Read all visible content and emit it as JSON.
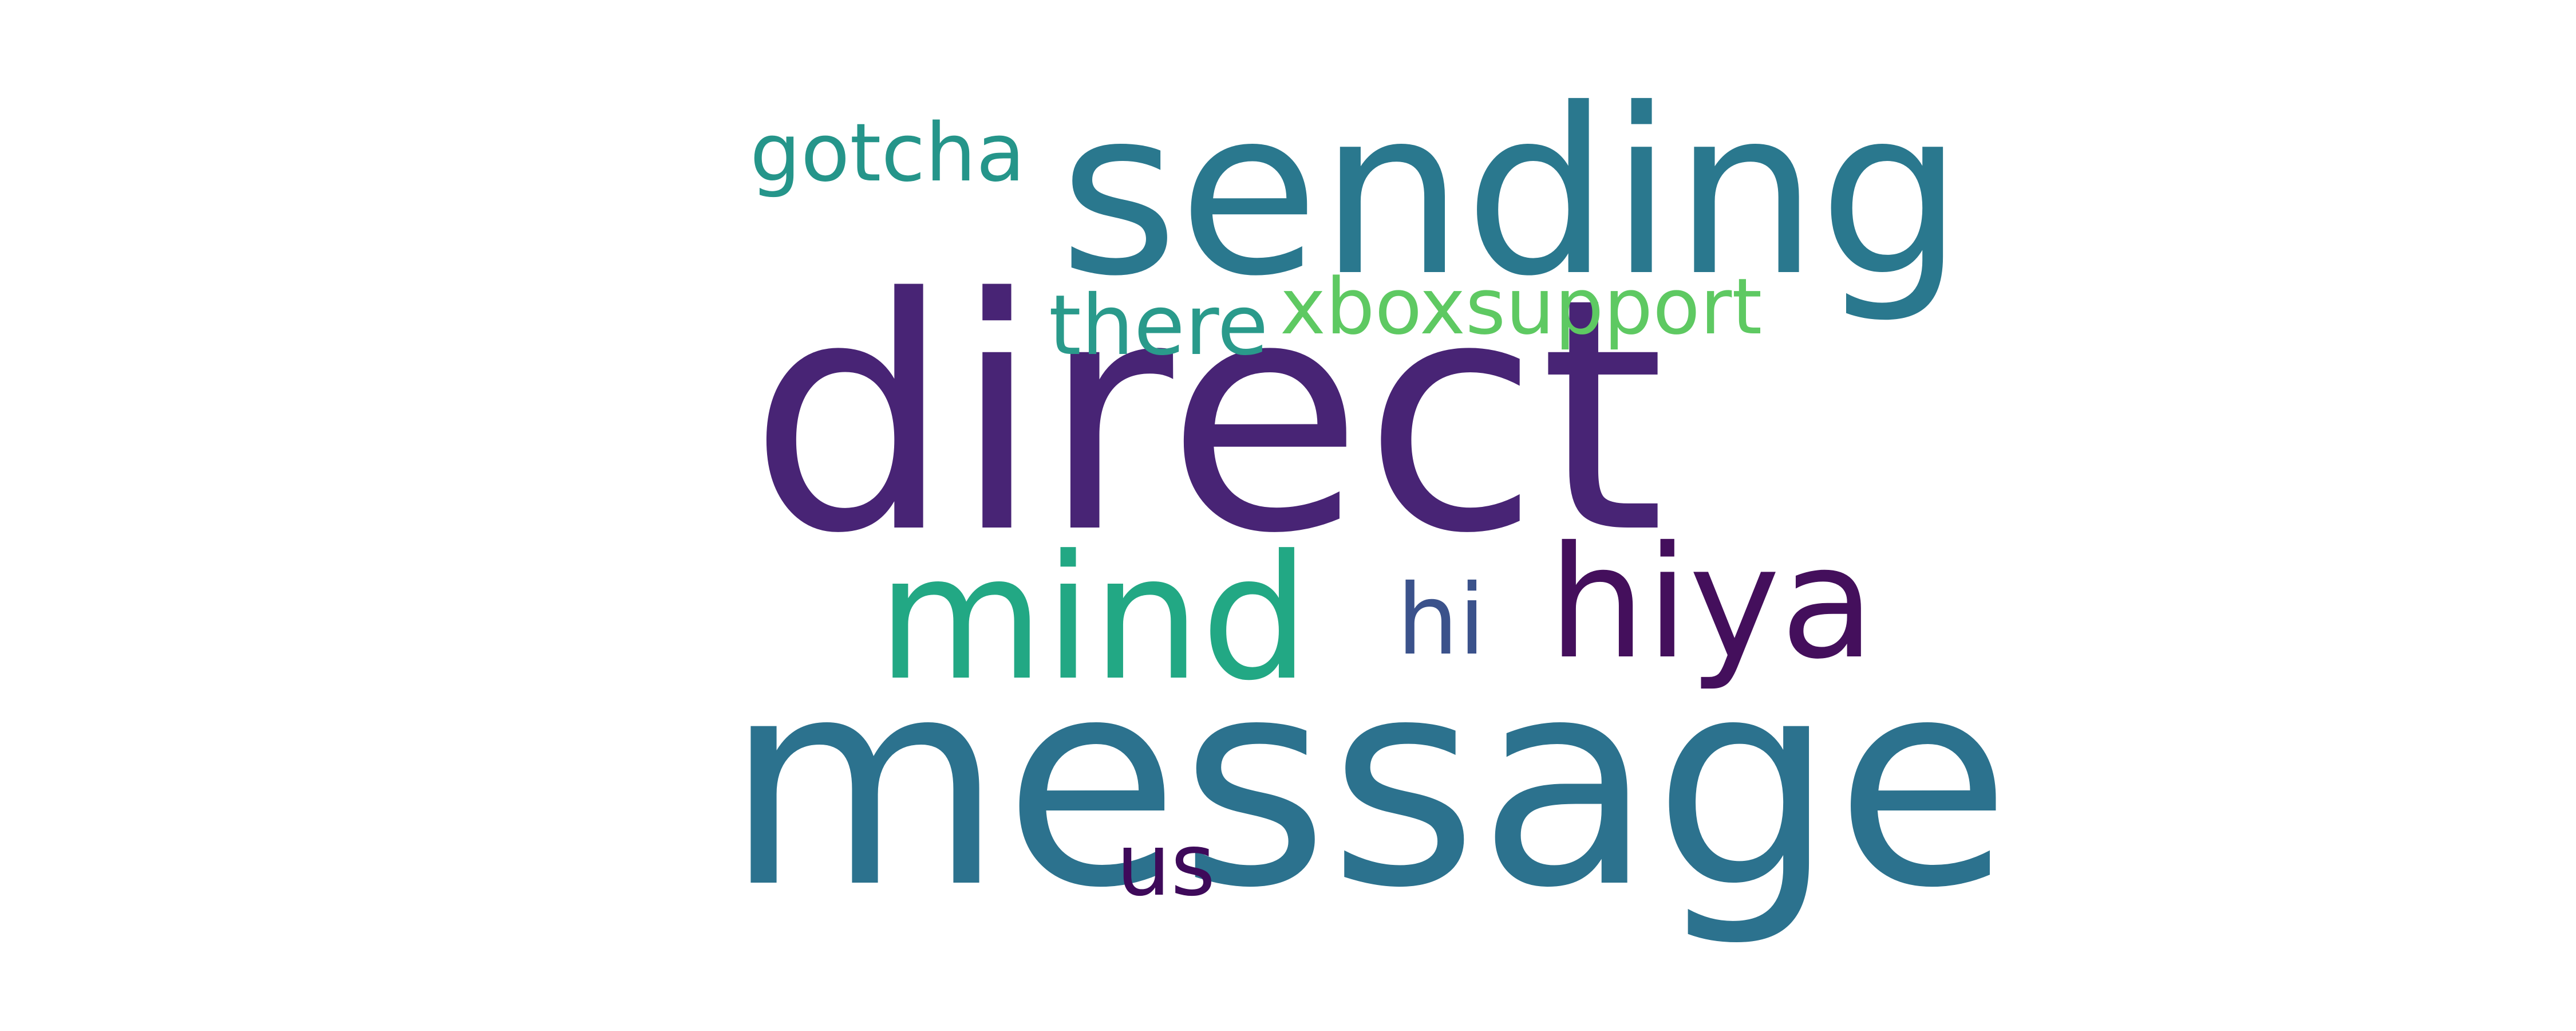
{
  "word_cloud": {
    "background": "#ffffff",
    "words": [
      {
        "id": "direct",
        "text": "direct",
        "color": "#482475"
      },
      {
        "id": "message",
        "text": "message",
        "color": "#2c728e"
      },
      {
        "id": "sending",
        "text": "sending",
        "color": "#2a788e"
      },
      {
        "id": "mind",
        "text": "mind",
        "color": "#22a884"
      },
      {
        "id": "hiya",
        "text": "hiya",
        "color": "#440f5c"
      },
      {
        "id": "xboxsupport",
        "text": "xboxsupport",
        "color": "#5ec962"
      },
      {
        "id": "there",
        "text": "there",
        "color": "#2a9a8b"
      },
      {
        "id": "gotcha",
        "text": "gotcha",
        "color": "#25958a"
      },
      {
        "id": "hi",
        "text": "hi",
        "color": "#3b528b"
      },
      {
        "id": "us",
        "text": "us",
        "color": "#3e0a5a"
      }
    ]
  }
}
